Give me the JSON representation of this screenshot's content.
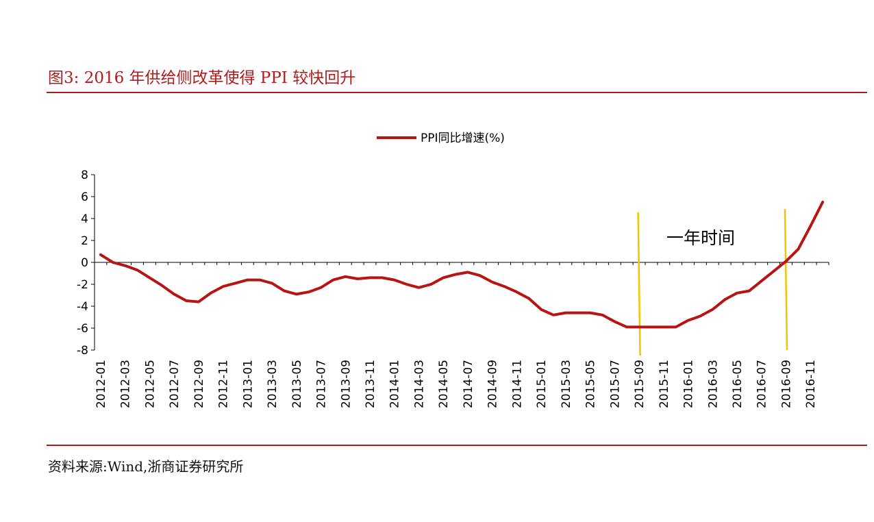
{
  "figure": {
    "title": "图3:  2016 年供给侧改革使得 PPI 较快回升",
    "source": "资料来源:Wind,浙商证券研究所"
  },
  "colors": {
    "accent": "#b01c1c",
    "line": "#b81414",
    "marker": "#f5c400",
    "annotation": "#d9362b"
  },
  "chart_data": {
    "type": "line",
    "title": "",
    "xlabel": "",
    "ylabel": "",
    "ylim": [
      -8,
      8
    ],
    "yticks": [
      "8",
      "6",
      "4",
      "2",
      "0",
      "-2",
      "-4",
      "-6",
      "-8"
    ],
    "grid": false,
    "legend_position": "top-center",
    "xtick_labels": [
      "2012-01",
      "2012-03",
      "2012-05",
      "2012-07",
      "2012-09",
      "2012-11",
      "2013-01",
      "2013-03",
      "2013-05",
      "2013-07",
      "2013-09",
      "2013-11",
      "2014-01",
      "2014-03",
      "2014-05",
      "2014-07",
      "2014-09",
      "2014-11",
      "2015-01",
      "2015-03",
      "2015-05",
      "2015-07",
      "2015-09",
      "2015-11",
      "2016-01",
      "2016-03",
      "2016-05",
      "2016-07",
      "2016-09",
      "2016-11"
    ],
    "x": [
      "2012-01",
      "2012-02",
      "2012-03",
      "2012-04",
      "2012-05",
      "2012-06",
      "2012-07",
      "2012-08",
      "2012-09",
      "2012-10",
      "2012-11",
      "2012-12",
      "2013-01",
      "2013-02",
      "2013-03",
      "2013-04",
      "2013-05",
      "2013-06",
      "2013-07",
      "2013-08",
      "2013-09",
      "2013-10",
      "2013-11",
      "2013-12",
      "2014-01",
      "2014-02",
      "2014-03",
      "2014-04",
      "2014-05",
      "2014-06",
      "2014-07",
      "2014-08",
      "2014-09",
      "2014-10",
      "2014-11",
      "2014-12",
      "2015-01",
      "2015-02",
      "2015-03",
      "2015-04",
      "2015-05",
      "2015-06",
      "2015-07",
      "2015-08",
      "2015-09",
      "2015-10",
      "2015-11",
      "2015-12",
      "2016-01",
      "2016-02",
      "2016-03",
      "2016-04",
      "2016-05",
      "2016-06",
      "2016-07",
      "2016-08",
      "2016-09",
      "2016-10",
      "2016-11",
      "2016-12"
    ],
    "series": [
      {
        "name": "PPI同比增速(%)",
        "values": [
          0.7,
          0.0,
          -0.3,
          -0.7,
          -1.4,
          -2.1,
          -2.9,
          -3.5,
          -3.6,
          -2.8,
          -2.2,
          -1.9,
          -1.6,
          -1.6,
          -1.9,
          -2.6,
          -2.9,
          -2.7,
          -2.3,
          -1.6,
          -1.3,
          -1.5,
          -1.4,
          -1.4,
          -1.6,
          -2.0,
          -2.3,
          -2.0,
          -1.4,
          -1.1,
          -0.9,
          -1.2,
          -1.8,
          -2.2,
          -2.7,
          -3.3,
          -4.3,
          -4.8,
          -4.6,
          -4.6,
          -4.6,
          -4.8,
          -5.4,
          -5.9,
          -5.9,
          -5.9,
          -5.9,
          -5.9,
          -5.3,
          -4.9,
          -4.3,
          -3.4,
          -2.8,
          -2.6,
          -1.7,
          -0.8,
          0.1,
          1.2,
          3.3,
          5.5
        ]
      }
    ],
    "annotations": [
      {
        "text": "一年时间"
      },
      {
        "type": "vertical_marker",
        "at": "2015-09"
      },
      {
        "type": "vertical_marker",
        "at": "2016-09"
      }
    ]
  }
}
